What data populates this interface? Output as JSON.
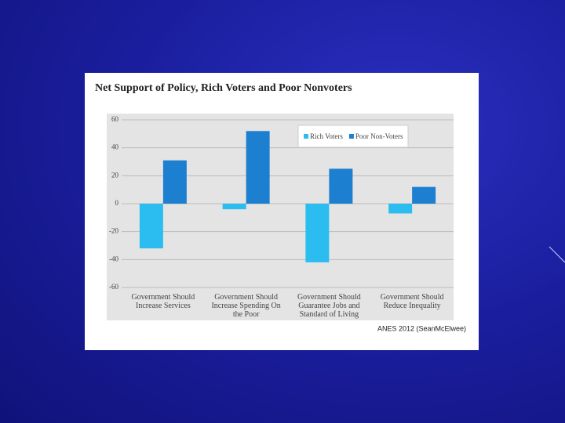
{
  "chart_data": {
    "type": "bar",
    "title": "Net Support of Policy, Rich Voters and Poor Nonvoters",
    "categories": [
      "Government Should Increase Services",
      "Government Should Increase Spending On the Poor",
      "Government Should Guarantee Jobs and Standard of Living",
      "Government Should Reduce Inequality"
    ],
    "series": [
      {
        "name": "Rich Voters",
        "color": "#2bbdf0",
        "values": [
          -32,
          -4,
          -42,
          -7
        ]
      },
      {
        "name": "Poor Non-Voters",
        "color": "#1c7fcf",
        "values": [
          31,
          52,
          25,
          12
        ]
      }
    ],
    "ylim": [
      -60,
      60
    ],
    "yticks": [
      -60,
      -40,
      -20,
      0,
      20,
      40,
      60
    ],
    "grid": true,
    "legend": "top-right",
    "source": "ANES 2012 (SeanMcElwee)"
  }
}
